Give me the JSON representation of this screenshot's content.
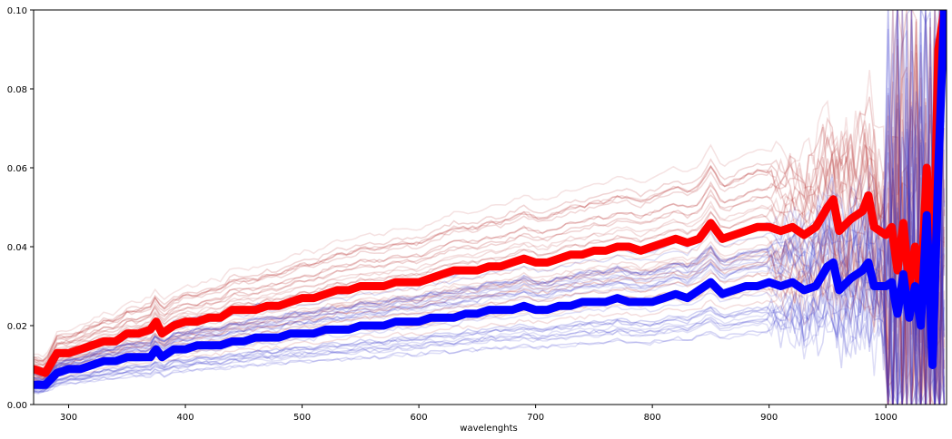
{
  "chart_data": {
    "type": "line",
    "title": "",
    "xlabel": "wavelenghts",
    "ylabel": "",
    "xlim": [
      270,
      1052
    ],
    "ylim": [
      0.0,
      0.1
    ],
    "grid": false,
    "legend": "none",
    "x_ticks": [
      300,
      400,
      500,
      600,
      700,
      800,
      900,
      1000
    ],
    "y_ticks": [
      "0.00",
      "0.02",
      "0.04",
      "0.06",
      "0.08",
      "0.10"
    ],
    "series": [
      {
        "style": "thick-mean",
        "color": "#ff0000",
        "x": [
          270,
          280,
          290,
          300,
          310,
          320,
          330,
          340,
          350,
          360,
          370,
          375,
          380,
          390,
          400,
          410,
          420,
          430,
          440,
          450,
          460,
          470,
          480,
          490,
          500,
          510,
          520,
          530,
          540,
          550,
          560,
          570,
          580,
          590,
          600,
          610,
          620,
          630,
          640,
          650,
          660,
          670,
          680,
          690,
          700,
          710,
          720,
          730,
          740,
          750,
          760,
          770,
          780,
          790,
          800,
          810,
          820,
          830,
          840,
          850,
          860,
          870,
          880,
          890,
          900,
          910,
          920,
          930,
          940,
          950,
          955,
          960,
          970,
          980,
          985,
          990,
          1000,
          1005,
          1010,
          1015,
          1020,
          1025,
          1030,
          1035,
          1040,
          1045,
          1050
        ],
        "y": [
          0.009,
          0.008,
          0.013,
          0.013,
          0.014,
          0.015,
          0.016,
          0.016,
          0.018,
          0.018,
          0.019,
          0.021,
          0.018,
          0.02,
          0.021,
          0.021,
          0.022,
          0.022,
          0.024,
          0.024,
          0.024,
          0.025,
          0.025,
          0.026,
          0.027,
          0.027,
          0.028,
          0.029,
          0.029,
          0.03,
          0.03,
          0.03,
          0.031,
          0.031,
          0.031,
          0.032,
          0.033,
          0.034,
          0.034,
          0.034,
          0.035,
          0.035,
          0.036,
          0.037,
          0.036,
          0.036,
          0.037,
          0.038,
          0.038,
          0.039,
          0.039,
          0.04,
          0.04,
          0.039,
          0.04,
          0.041,
          0.042,
          0.041,
          0.042,
          0.046,
          0.042,
          0.043,
          0.044,
          0.045,
          0.045,
          0.044,
          0.045,
          0.043,
          0.045,
          0.05,
          0.052,
          0.044,
          0.047,
          0.049,
          0.053,
          0.045,
          0.043,
          0.045,
          0.034,
          0.046,
          0.03,
          0.04,
          0.027,
          0.06,
          0.025,
          0.09,
          0.1
        ]
      },
      {
        "style": "thick-mean",
        "color": "#0000ff",
        "x": [
          270,
          280,
          290,
          300,
          310,
          320,
          330,
          340,
          350,
          360,
          370,
          375,
          380,
          390,
          400,
          410,
          420,
          430,
          440,
          450,
          460,
          470,
          480,
          490,
          500,
          510,
          520,
          530,
          540,
          550,
          560,
          570,
          580,
          590,
          600,
          610,
          620,
          630,
          640,
          650,
          660,
          670,
          680,
          690,
          700,
          710,
          720,
          730,
          740,
          750,
          760,
          770,
          780,
          790,
          800,
          810,
          820,
          830,
          840,
          850,
          860,
          870,
          880,
          890,
          900,
          910,
          920,
          930,
          940,
          950,
          955,
          960,
          970,
          980,
          985,
          990,
          1000,
          1005,
          1010,
          1015,
          1020,
          1025,
          1030,
          1035,
          1040,
          1045,
          1050
        ],
        "y": [
          0.005,
          0.005,
          0.008,
          0.009,
          0.009,
          0.01,
          0.011,
          0.011,
          0.012,
          0.012,
          0.012,
          0.014,
          0.012,
          0.014,
          0.014,
          0.015,
          0.015,
          0.015,
          0.016,
          0.016,
          0.017,
          0.017,
          0.017,
          0.018,
          0.018,
          0.018,
          0.019,
          0.019,
          0.019,
          0.02,
          0.02,
          0.02,
          0.021,
          0.021,
          0.021,
          0.022,
          0.022,
          0.022,
          0.023,
          0.023,
          0.024,
          0.024,
          0.024,
          0.025,
          0.024,
          0.024,
          0.025,
          0.025,
          0.026,
          0.026,
          0.026,
          0.027,
          0.026,
          0.026,
          0.026,
          0.027,
          0.028,
          0.027,
          0.029,
          0.031,
          0.028,
          0.029,
          0.03,
          0.03,
          0.031,
          0.03,
          0.031,
          0.029,
          0.03,
          0.035,
          0.036,
          0.029,
          0.032,
          0.034,
          0.036,
          0.03,
          0.03,
          0.031,
          0.023,
          0.033,
          0.022,
          0.03,
          0.02,
          0.048,
          0.01,
          0.06,
          0.1
        ]
      }
    ],
    "background_series": {
      "red_family_color": "#b22222",
      "blue_family_color": "#3333cc",
      "count_per_family": 30,
      "opacity": 0.12
    }
  }
}
